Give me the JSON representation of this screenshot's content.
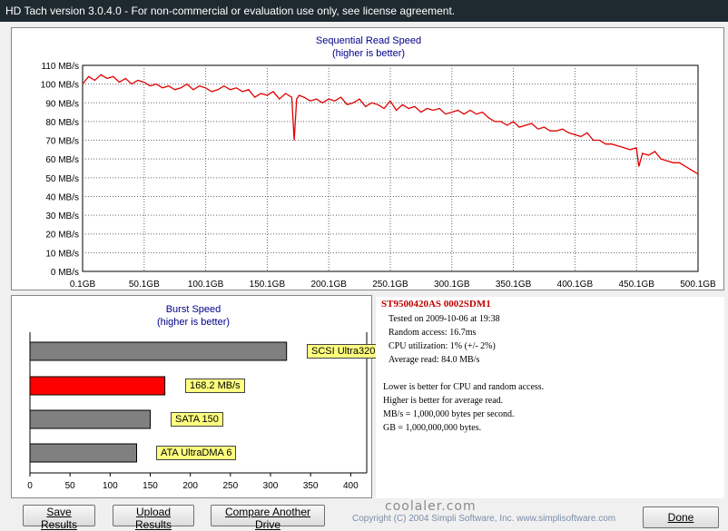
{
  "window": {
    "title": "HD Tach version 3.0.4.0  - For non-commercial or evaluation use only, see license agreement."
  },
  "seq_chart": {
    "title": "Sequential Read Speed",
    "subtitle": "(higher is better)",
    "y_ticks": [
      "110 MB/s",
      "100 MB/s",
      "90 MB/s",
      "80 MB/s",
      "70 MB/s",
      "60 MB/s",
      "50 MB/s",
      "40 MB/s",
      "30 MB/s",
      "20 MB/s",
      "10 MB/s",
      "0 MB/s"
    ],
    "x_ticks": [
      "0.1GB",
      "50.1GB",
      "100.1GB",
      "150.1GB",
      "200.1GB",
      "250.1GB",
      "300.1GB",
      "350.1GB",
      "400.1GB",
      "450.1GB",
      "500.1GB"
    ],
    "line_color": "#e00000"
  },
  "burst_chart": {
    "title": "Burst Speed",
    "subtitle": "(higher is better)",
    "x_ticks": [
      "0",
      "50",
      "100",
      "150",
      "200",
      "250",
      "300",
      "350",
      "400"
    ],
    "bars": [
      {
        "label": "SCSI Ultra320",
        "value": 320,
        "color": "#808080"
      },
      {
        "label": "168.2 MB/s",
        "value": 168.2,
        "color": "#ff0000"
      },
      {
        "label": "SATA 150",
        "value": 150,
        "color": "#808080"
      },
      {
        "label": "ATA UltraDMA 6",
        "value": 133,
        "color": "#808080"
      }
    ]
  },
  "chart_data": [
    {
      "type": "line",
      "title": "Sequential Read Speed",
      "subtitle": "(higher is better)",
      "xlabel": "",
      "ylabel": "",
      "x_unit": "GB",
      "y_unit": "MB/s",
      "xlim": [
        0.1,
        500.1
      ],
      "ylim": [
        0,
        110
      ],
      "grid": true,
      "series": [
        {
          "color": "#e00000",
          "x": [
            0.1,
            5,
            10,
            15,
            20,
            25,
            30,
            35,
            40,
            45,
            50,
            55,
            60,
            65,
            70,
            75,
            80,
            85,
            90,
            95,
            100,
            105,
            110,
            115,
            120,
            125,
            130,
            135,
            140,
            145,
            150,
            155,
            160,
            165,
            170,
            172,
            174,
            176,
            180,
            185,
            190,
            195,
            200,
            205,
            210,
            215,
            220,
            225,
            230,
            235,
            240,
            245,
            250,
            255,
            260,
            265,
            270,
            275,
            280,
            285,
            290,
            295,
            300,
            305,
            310,
            315,
            320,
            325,
            330,
            335,
            340,
            345,
            350,
            355,
            360,
            365,
            370,
            375,
            380,
            385,
            390,
            395,
            400,
            405,
            410,
            415,
            420,
            425,
            430,
            435,
            440,
            445,
            450,
            452,
            455,
            460,
            465,
            470,
            475,
            480,
            485,
            490,
            495,
            500.1
          ],
          "y": [
            100,
            104,
            102,
            105,
            103,
            104,
            101,
            103,
            100,
            102,
            101,
            99,
            100,
            98,
            99,
            97,
            98,
            100,
            97,
            99,
            98,
            96,
            97,
            99,
            97,
            98,
            96,
            97,
            93,
            95,
            94,
            96,
            92,
            95,
            93,
            70,
            92,
            94,
            93,
            91,
            92,
            90,
            92,
            91,
            93,
            89,
            90,
            92,
            88,
            90,
            89,
            87,
            91,
            86,
            89,
            87,
            88,
            85,
            87,
            86,
            87,
            84,
            85,
            86,
            84,
            86,
            84,
            85,
            82,
            80,
            80,
            78,
            80,
            77,
            78,
            79,
            76,
            77,
            75,
            75,
            76,
            74,
            73,
            72,
            74,
            70,
            70,
            68,
            68,
            67,
            66,
            65,
            66,
            56,
            63,
            62,
            64,
            60,
            59,
            58,
            58,
            56,
            54,
            52
          ]
        }
      ]
    },
    {
      "type": "bar",
      "orientation": "horizontal",
      "title": "Burst Speed",
      "subtitle": "(higher is better)",
      "categories": [
        "SCSI Ultra320",
        "168.2 MB/s",
        "SATA 150",
        "ATA UltraDMA 6"
      ],
      "values": [
        320,
        168.2,
        150,
        133
      ],
      "xlim": [
        0,
        420
      ],
      "grid": false
    }
  ],
  "info": {
    "drive": "ST9500420AS 0002SDM1",
    "lines": [
      "Tested on 2009-10-06 at 19:38",
      "Random access: 16.7ms",
      "CPU utilization: 1% (+/- 2%)",
      "Average read: 84.0 MB/s"
    ],
    "notes": [
      "Lower is better for CPU and random access.",
      "Higher is better for average read.",
      "MB/s = 1,000,000 bytes per second.",
      "GB = 1,000,000,000 bytes."
    ]
  },
  "buttons": {
    "save": "Save Results",
    "upload": "Upload Results",
    "compare": "Compare Another Drive",
    "done": "Done"
  },
  "footer": {
    "copyright": "Copyright (C) 2004 Simpli Software, Inc. www.simplisoftware.com"
  },
  "watermark": {
    "text": "coolaler.com"
  }
}
